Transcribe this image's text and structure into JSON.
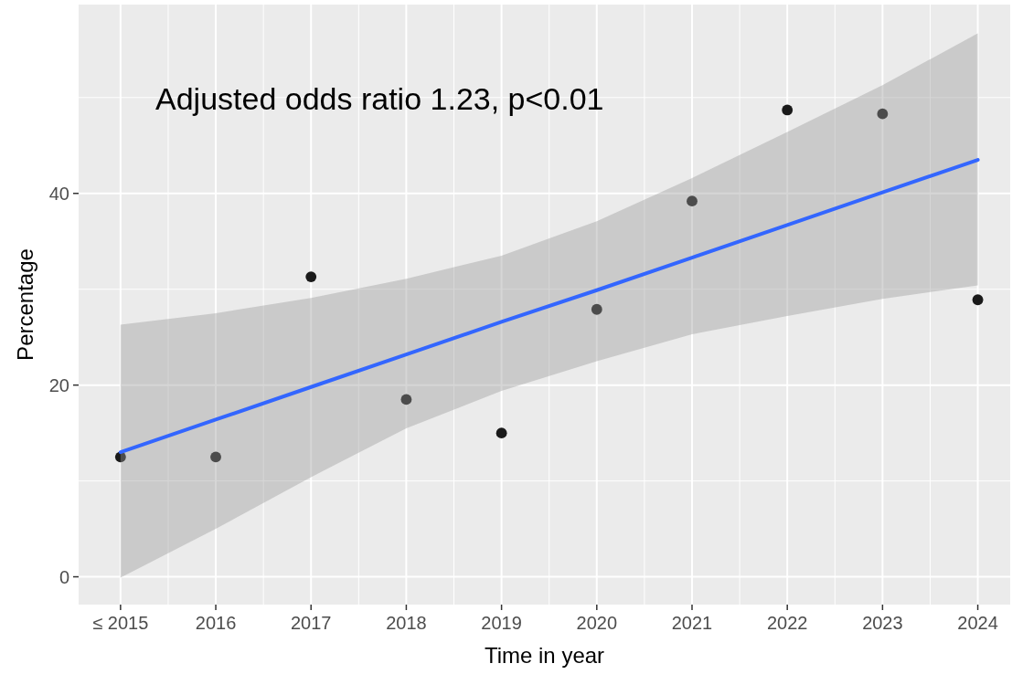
{
  "chart_data": {
    "type": "scatter",
    "xlabel": "Time in year",
    "ylabel": "Percentage",
    "annotations": [
      "Adjusted odds ratio 1.23, p<0.01"
    ],
    "x": [
      2015,
      2016,
      2017,
      2018,
      2019,
      2020,
      2021,
      2022,
      2023,
      2024
    ],
    "series": [
      {
        "type": "scatter",
        "color": "#1a1a1a",
        "marker": "circle",
        "values": [
          12.5,
          12.5,
          31.3,
          18.5,
          15.0,
          27.9,
          39.2,
          48.7,
          48.3,
          28.9
        ]
      },
      {
        "type": "line",
        "color": "#3366ff",
        "line_style": "solid",
        "values": [
          13.0,
          16.4,
          19.8,
          23.2,
          26.6,
          29.9,
          33.3,
          36.7,
          40.1,
          43.5
        ],
        "lower": [
          -0.1,
          5.0,
          10.4,
          15.5,
          19.4,
          22.5,
          25.3,
          27.2,
          29.0,
          30.4
        ],
        "upper": [
          26.3,
          27.5,
          29.1,
          31.1,
          33.5,
          37.1,
          41.6,
          46.4,
          51.3,
          56.7
        ]
      }
    ],
    "xlim": [
      2014.56,
      2024.34
    ],
    "ylim": [
      -2.9,
      59.7
    ],
    "xticks": [
      {
        "value": 2015,
        "label": "≤ 2015"
      },
      2016,
      2017,
      2018,
      2019,
      2020,
      2021,
      2022,
      2023,
      2024
    ],
    "yticks": [
      0,
      20,
      40
    ],
    "grid": true
  }
}
